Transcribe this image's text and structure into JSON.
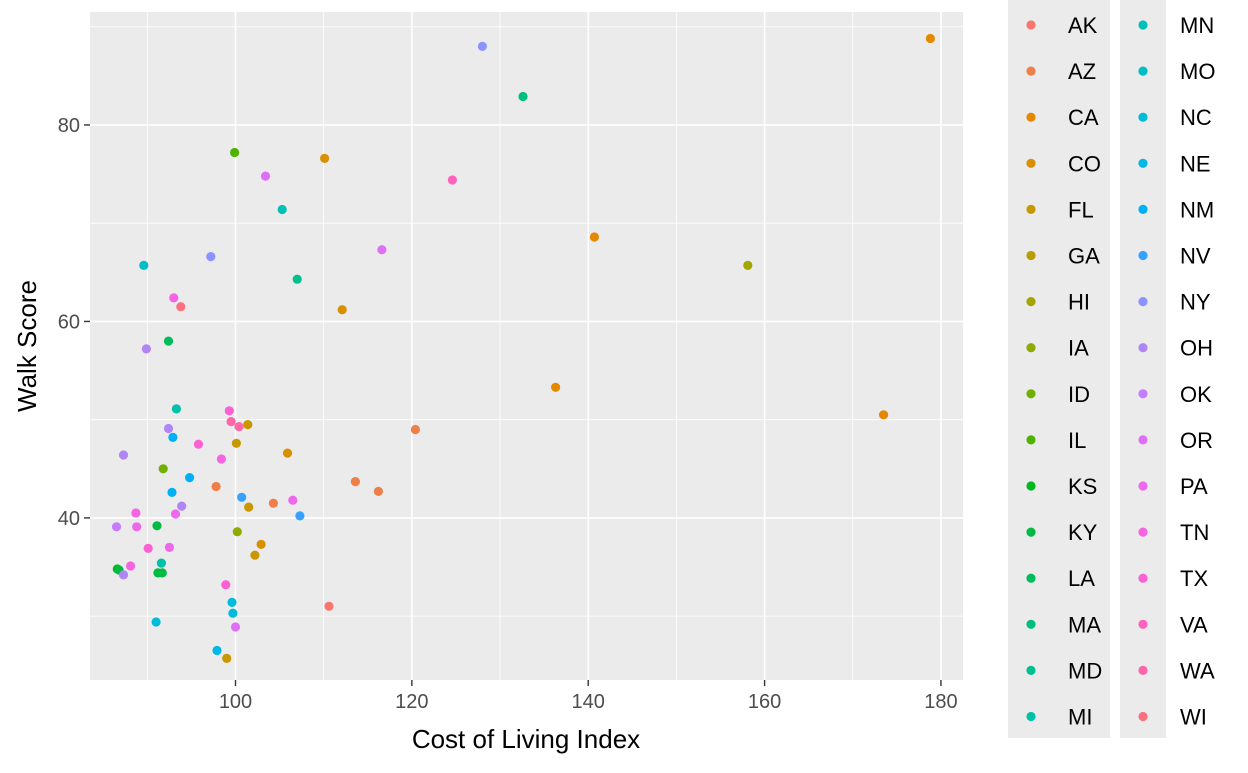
{
  "chart_data": {
    "type": "scatter",
    "xlabel": "Cost of Living Index",
    "ylabel": "Walk Score",
    "xlim": [
      83.5,
      182.5
    ],
    "ylim": [
      23.5,
      91.5
    ],
    "x_ticks": [
      100,
      120,
      140,
      160,
      180
    ],
    "y_ticks": [
      40,
      60,
      80
    ],
    "x_tick_labels": [
      "100",
      "120",
      "140",
      "160",
      "180"
    ],
    "y_tick_labels": [
      "40",
      "60",
      "80"
    ],
    "grid": true,
    "legend_position": "right",
    "series": [
      {
        "name": "AK",
        "color": "#F8766D",
        "points": [
          [
            110.6,
            31.0
          ]
        ]
      },
      {
        "name": "AZ",
        "color": "#EF7F49",
        "points": [
          [
            97.8,
            43.2
          ],
          [
            104.3,
            41.5
          ],
          [
            113.6,
            43.7
          ],
          [
            116.2,
            42.7
          ],
          [
            120.4,
            49.0
          ]
        ]
      },
      {
        "name": "CA",
        "color": "#E48800",
        "points": [
          [
            136.3,
            53.3
          ],
          [
            140.7,
            68.6
          ],
          [
            173.5,
            50.5
          ],
          [
            178.8,
            88.8
          ]
        ]
      },
      {
        "name": "CO",
        "color": "#D89000",
        "points": [
          [
            102.9,
            37.3
          ],
          [
            105.9,
            46.6
          ],
          [
            110.1,
            76.6
          ],
          [
            112.1,
            61.2
          ]
        ]
      },
      {
        "name": "FL",
        "color": "#C99800",
        "points": [
          [
            99.0,
            25.7
          ],
          [
            101.5,
            41.1
          ],
          [
            101.4,
            49.5
          ],
          [
            100.1,
            47.6
          ],
          [
            102.2,
            36.2
          ]
        ]
      },
      {
        "name": "GA",
        "color": "#B79F00",
        "points": []
      },
      {
        "name": "HI",
        "color": "#A3A500",
        "points": [
          [
            158.1,
            65.7
          ]
        ]
      },
      {
        "name": "IA",
        "color": "#8DAB00",
        "points": [
          [
            100.2,
            38.6
          ]
        ]
      },
      {
        "name": "ID",
        "color": "#71B000",
        "points": [
          [
            91.8,
            45.0
          ]
        ]
      },
      {
        "name": "IL",
        "color": "#4FB400",
        "points": [
          [
            99.9,
            77.2
          ]
        ]
      },
      {
        "name": "KS",
        "color": "#00B81F",
        "points": [
          [
            86.6,
            34.8
          ]
        ]
      },
      {
        "name": "KY",
        "color": "#00BA42",
        "points": [
          [
            91.1,
            39.2
          ],
          [
            86.8,
            34.7
          ],
          [
            91.2,
            34.4
          ],
          [
            91.7,
            34.4
          ]
        ]
      },
      {
        "name": "LA",
        "color": "#00BD5C",
        "points": [
          [
            92.4,
            58.0
          ]
        ]
      },
      {
        "name": "MA",
        "color": "#00BF7D",
        "points": [
          [
            132.6,
            82.9
          ]
        ]
      },
      {
        "name": "MD",
        "color": "#00C08E",
        "points": [
          [
            107.0,
            64.3
          ]
        ]
      },
      {
        "name": "MI",
        "color": "#00C1A7",
        "points": [
          [
            93.3,
            51.1
          ],
          [
            91.6,
            35.4
          ]
        ]
      },
      {
        "name": "MN",
        "color": "#00C0B8",
        "points": [
          [
            105.3,
            71.4
          ]
        ]
      },
      {
        "name": "MO",
        "color": "#00BEC4",
        "points": [
          [
            89.6,
            65.7
          ]
        ]
      },
      {
        "name": "NC",
        "color": "#00BCD8",
        "points": [
          [
            91.0,
            29.4
          ],
          [
            99.6,
            31.4
          ],
          [
            99.7,
            30.3
          ]
        ]
      },
      {
        "name": "NE",
        "color": "#00B8E5",
        "points": [
          [
            97.9,
            26.5
          ]
        ]
      },
      {
        "name": "NM",
        "color": "#00B0F6",
        "points": [
          [
            92.8,
            42.6
          ],
          [
            92.9,
            48.2
          ],
          [
            94.8,
            44.1
          ]
        ]
      },
      {
        "name": "NV",
        "color": "#35A2FF",
        "points": [
          [
            100.7,
            42.1
          ],
          [
            107.3,
            40.2
          ]
        ]
      },
      {
        "name": "NY",
        "color": "#8B93FF",
        "points": [
          [
            128.0,
            88.0
          ],
          [
            97.2,
            66.6
          ]
        ]
      },
      {
        "name": "OH",
        "color": "#B085F5",
        "points": [
          [
            89.9,
            57.2
          ],
          [
            87.3,
            46.4
          ],
          [
            92.4,
            49.1
          ],
          [
            93.9,
            41.2
          ],
          [
            87.3,
            34.2
          ]
        ]
      },
      {
        "name": "OK",
        "color": "#C77CFF",
        "points": [
          [
            86.5,
            39.1
          ]
        ]
      },
      {
        "name": "OR",
        "color": "#DE70F8",
        "points": [
          [
            116.6,
            67.3
          ],
          [
            103.4,
            74.8
          ],
          [
            100.0,
            28.9
          ]
        ]
      },
      {
        "name": "PA",
        "color": "#ED68ED",
        "points": [
          [
            106.5,
            41.8
          ],
          [
            93.2,
            40.4
          ],
          [
            88.8,
            39.1
          ],
          [
            92.5,
            37.0
          ]
        ]
      },
      {
        "name": "TN",
        "color": "#F564E3",
        "points": [
          [
            93.0,
            62.4
          ],
          [
            98.4,
            46.0
          ],
          [
            88.7,
            40.5
          ],
          [
            88.1,
            35.1
          ]
        ]
      },
      {
        "name": "TX",
        "color": "#FC61D4",
        "points": [
          [
            95.8,
            47.5
          ],
          [
            98.9,
            33.2
          ],
          [
            90.1,
            36.9
          ],
          [
            99.3,
            50.9
          ]
        ]
      },
      {
        "name": "VA",
        "color": "#FF62BC",
        "points": [
          [
            124.6,
            74.4
          ]
        ]
      },
      {
        "name": "WA",
        "color": "#FF66A8",
        "points": [
          [
            99.5,
            49.8
          ],
          [
            100.4,
            49.3
          ]
        ]
      },
      {
        "name": "WI",
        "color": "#FC717F",
        "points": [
          [
            93.8,
            61.5
          ]
        ]
      }
    ]
  }
}
